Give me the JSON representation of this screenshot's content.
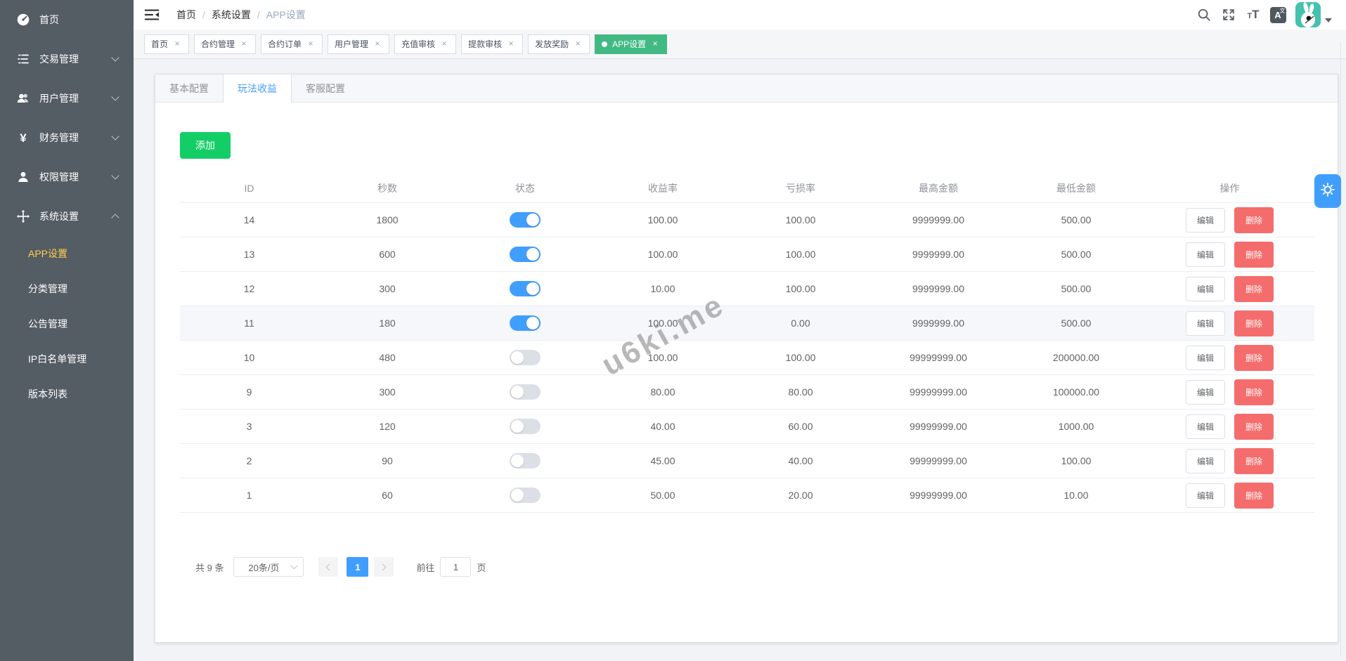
{
  "colors": {
    "sidebar_bg": "#545c64",
    "sidebar_active": "#ffd04b",
    "primary_blue": "#409eff",
    "tag_active_green": "#42b983",
    "add_button_green": "#13ce66",
    "delete_red": "#f56c6c",
    "avatar_bg": "#45c2ae"
  },
  "sidebar": {
    "items": [
      {
        "key": "home",
        "label": "首页",
        "icon": "dashboard-icon",
        "expandable": false
      },
      {
        "key": "trade",
        "label": "交易管理",
        "icon": "transactions-icon",
        "expandable": true
      },
      {
        "key": "users",
        "label": "用户管理",
        "icon": "users-icon",
        "expandable": true
      },
      {
        "key": "finance",
        "label": "财务管理",
        "icon": "finance-icon",
        "expandable": true
      },
      {
        "key": "permission",
        "label": "权限管理",
        "icon": "permission-icon",
        "expandable": true
      },
      {
        "key": "system",
        "label": "系统设置",
        "icon": "system-icon",
        "expandable": true,
        "expanded": true,
        "children": [
          {
            "key": "app-settings",
            "label": "APP设置",
            "active": true
          },
          {
            "key": "category",
            "label": "分类管理",
            "active": false
          },
          {
            "key": "announcement",
            "label": "公告管理",
            "active": false
          },
          {
            "key": "ip-whitelist",
            "label": "IP白名单管理",
            "active": false
          },
          {
            "key": "versions",
            "label": "版本列表",
            "active": false
          }
        ]
      }
    ]
  },
  "topbar": {
    "breadcrumb": {
      "0": "首页",
      "1": "系统设置",
      "2": "APP设置"
    },
    "icons": [
      "hamburger-icon",
      "search-icon",
      "fullscreen-icon",
      "font-size-icon",
      "translate-icon",
      "avatar",
      "caret-down-icon"
    ]
  },
  "tags": [
    {
      "label": "首页",
      "active": false
    },
    {
      "label": "合约管理",
      "active": false
    },
    {
      "label": "合约订单",
      "active": false
    },
    {
      "label": "用户管理",
      "active": false
    },
    {
      "label": "充值审核",
      "active": false
    },
    {
      "label": "提款审核",
      "active": false
    },
    {
      "label": "发放奖励",
      "active": false
    },
    {
      "label": "APP设置",
      "active": true
    }
  ],
  "tabs": {
    "0": {
      "label": "基本配置"
    },
    "1": {
      "label": "玩法收益"
    },
    "2": {
      "label": "客服配置"
    }
  },
  "toolbar": {
    "add_label": "添加"
  },
  "table": {
    "headers": [
      "ID",
      "秒数",
      "状态",
      "收益率",
      "亏损率",
      "最高金额",
      "最低金额",
      "操作"
    ],
    "edit_label": "编辑",
    "delete_label": "删除",
    "rows": [
      {
        "id": "14",
        "seconds": "1800",
        "status": true,
        "profit": "100.00",
        "loss": "100.00",
        "max": "9999999.00",
        "min": "500.00",
        "highlighted": false
      },
      {
        "id": "13",
        "seconds": "600",
        "status": true,
        "profit": "100.00",
        "loss": "100.00",
        "max": "9999999.00",
        "min": "500.00",
        "highlighted": false
      },
      {
        "id": "12",
        "seconds": "300",
        "status": true,
        "profit": "10.00",
        "loss": "100.00",
        "max": "9999999.00",
        "min": "500.00",
        "highlighted": false
      },
      {
        "id": "11",
        "seconds": "180",
        "status": true,
        "profit": "100.00",
        "loss": "0.00",
        "max": "9999999.00",
        "min": "500.00",
        "highlighted": true
      },
      {
        "id": "10",
        "seconds": "480",
        "status": false,
        "profit": "100.00",
        "loss": "100.00",
        "max": "99999999.00",
        "min": "200000.00",
        "highlighted": false
      },
      {
        "id": "9",
        "seconds": "300",
        "status": false,
        "profit": "80.00",
        "loss": "80.00",
        "max": "99999999.00",
        "min": "100000.00",
        "highlighted": false
      },
      {
        "id": "3",
        "seconds": "120",
        "status": false,
        "profit": "40.00",
        "loss": "60.00",
        "max": "99999999.00",
        "min": "1000.00",
        "highlighted": false
      },
      {
        "id": "2",
        "seconds": "90",
        "status": false,
        "profit": "45.00",
        "loss": "40.00",
        "max": "99999999.00",
        "min": "100.00",
        "highlighted": false
      },
      {
        "id": "1",
        "seconds": "60",
        "status": false,
        "profit": "50.00",
        "loss": "20.00",
        "max": "99999999.00",
        "min": "10.00",
        "highlighted": false
      }
    ]
  },
  "pagination": {
    "total": "共 9 条",
    "page_size": "20条/页",
    "current_page": "1",
    "goto_label": "前往",
    "goto_value": "1",
    "page_suffix": "页"
  },
  "watermark": {
    "text": "u6ki.me"
  }
}
